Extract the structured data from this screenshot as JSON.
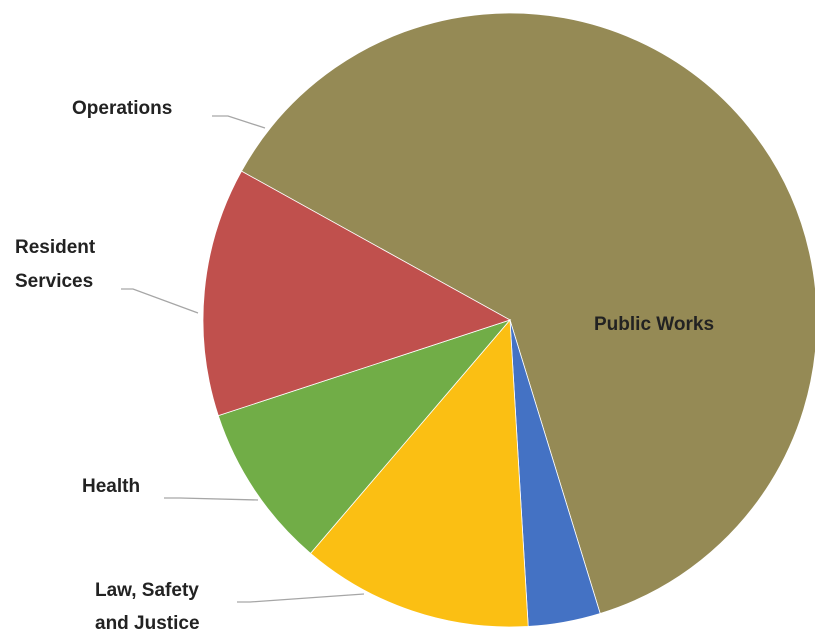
{
  "chart_data": {
    "type": "pie",
    "title": "",
    "categories": [
      "Public Works",
      "Law, Safety and Justice",
      "Health",
      "Resident Services",
      "Operations"
    ],
    "values": [
      62.2,
      3.8,
      12.2,
      8.7,
      13.1
    ],
    "colors": [
      "#958a55",
      "#4472c4",
      "#fbbf13",
      "#71ad47",
      "#c0504d"
    ],
    "labels": {
      "public_works": [
        "Public Works"
      ],
      "law_safety_justice": [
        "Law, Safety",
        "and Justice"
      ],
      "health": [
        "Health"
      ],
      "resident_services": [
        "Resident",
        "Services"
      ],
      "operations": [
        "Operations"
      ]
    },
    "legend": "none"
  }
}
